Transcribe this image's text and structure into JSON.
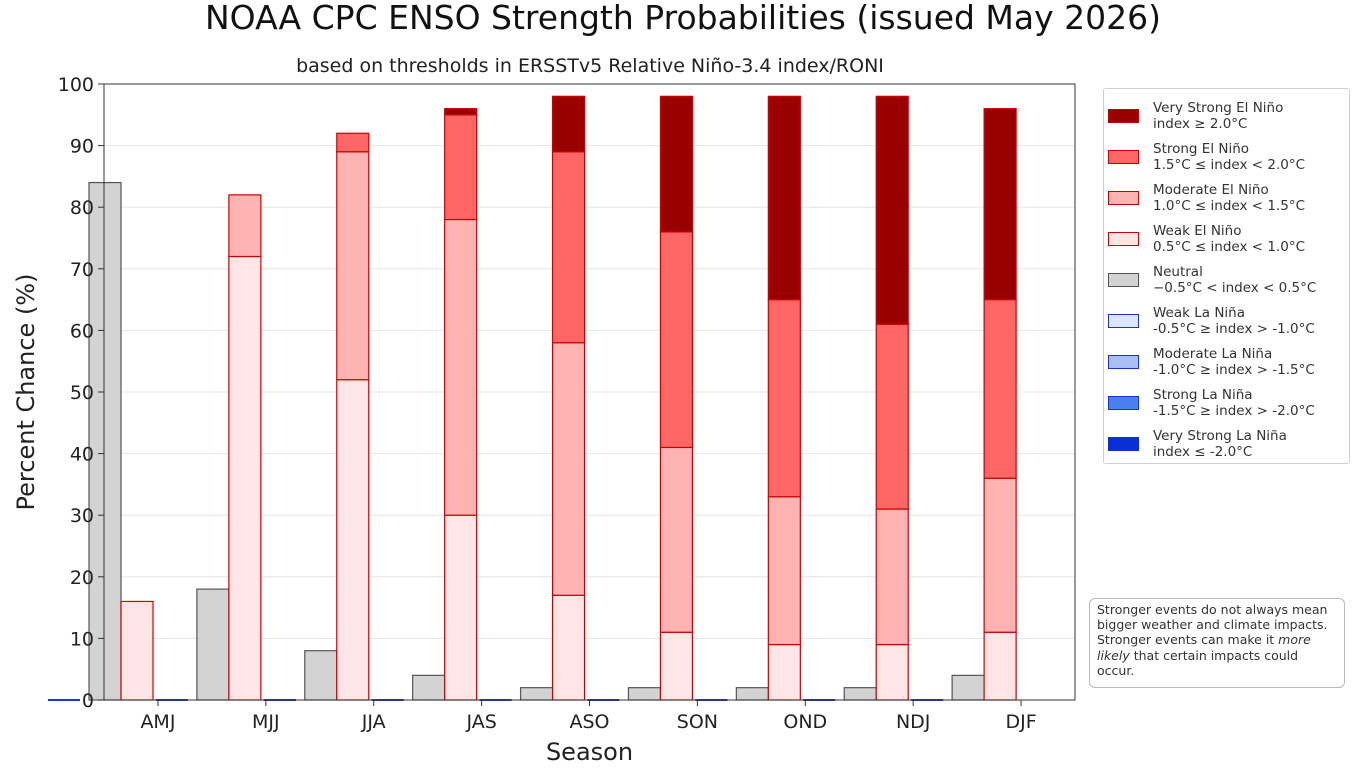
{
  "title": "NOAA CPC ENSO Strength Probabilities (issued May 2026)",
  "subtitle": "based on thresholds in ERSSTv5 Relative Niño-3.4 index/RONI",
  "note": {
    "before": "Stronger events do not always mean bigger weather and climate impacts. Stronger events can make it ",
    "emphasis": "more likely",
    "after": " that certain impacts could occur."
  },
  "legend": [
    {
      "name": "Very Strong El Niño",
      "range": "index ≥ 2.0°C",
      "fill": "#990000",
      "edge": "#cc0000"
    },
    {
      "name": "Strong El Niño",
      "range": "1.5°C ≤ index < 2.0°C",
      "fill": "#ff6666",
      "edge": "#cc0000"
    },
    {
      "name": "Moderate El Niño",
      "range": "1.0°C ≤ index < 1.5°C",
      "fill": "#ffb3b3",
      "edge": "#cc0000"
    },
    {
      "name": "Weak El Niño",
      "range": "0.5°C ≤ index < 1.0°C",
      "fill": "#ffe5e5",
      "edge": "#cc0000"
    },
    {
      "name": "Neutral",
      "range": "−0.5°C < index < 0.5°C",
      "fill": "#d3d3d3",
      "edge": "#555555"
    },
    {
      "name": "Weak La Niña",
      "range": "-0.5°C ≥ index > -1.0°C",
      "fill": "#dde6ff",
      "edge": "#1a33cc"
    },
    {
      "name": "Moderate La Niña",
      "range": "-1.0°C ≥ index > -1.5°C",
      "fill": "#a9c0f5",
      "edge": "#1a33cc"
    },
    {
      "name": "Strong La Niña",
      "range": "-1.5°C ≥ index > -2.0°C",
      "fill": "#4a7ff0",
      "edge": "#1a33cc"
    },
    {
      "name": "Very Strong La Niña",
      "range": "index ≤ -2.0°C",
      "fill": "#0b2fd6",
      "edge": "#0b2fd6"
    }
  ],
  "chart_data": {
    "type": "bar",
    "stacked": true,
    "xlabel": "Season",
    "ylabel": "Percent Chance (%)",
    "ylim": [
      0,
      100
    ],
    "yticks": [
      0,
      10,
      20,
      30,
      40,
      50,
      60,
      70,
      80,
      90,
      100
    ],
    "grid": true,
    "legend_position": "right",
    "categories": [
      "AMJ",
      "MJJ",
      "JJA",
      "JAS",
      "ASO",
      "SON",
      "OND",
      "NDJ",
      "DJF"
    ],
    "groups": [
      {
        "name": "La Niña",
        "stack_order": [
          "Weak La Niña",
          "Moderate La Niña",
          "Strong La Niña",
          "Very Strong La Niña"
        ]
      },
      {
        "name": "Neutral",
        "stack_order": [
          "Neutral"
        ]
      },
      {
        "name": "El Niño",
        "stack_order": [
          "Weak El Niño",
          "Moderate El Niño",
          "Strong El Niño",
          "Very Strong El Niño"
        ]
      }
    ],
    "series": [
      {
        "name": "Very Strong La Niña",
        "group": "La Niña",
        "values": [
          0,
          0,
          0,
          0,
          0,
          0,
          0,
          0,
          0
        ]
      },
      {
        "name": "Strong La Niña",
        "group": "La Niña",
        "values": [
          0,
          0,
          0,
          0,
          0,
          0,
          0,
          0,
          0
        ]
      },
      {
        "name": "Moderate La Niña",
        "group": "La Niña",
        "values": [
          0,
          0,
          0,
          0,
          0,
          0,
          0,
          0,
          0
        ]
      },
      {
        "name": "Weak La Niña",
        "group": "La Niña",
        "values": [
          0,
          0,
          0,
          0,
          0,
          0,
          0,
          0,
          0
        ]
      },
      {
        "name": "Neutral",
        "group": "Neutral",
        "values": [
          84,
          18,
          8,
          4,
          2,
          2,
          2,
          2,
          4
        ]
      },
      {
        "name": "Weak El Niño",
        "group": "El Niño",
        "values": [
          16,
          72,
          52,
          30,
          17,
          11,
          9,
          9,
          11
        ]
      },
      {
        "name": "Moderate El Niño",
        "group": "El Niño",
        "values": [
          0,
          10,
          37,
          48,
          41,
          30,
          24,
          22,
          25
        ]
      },
      {
        "name": "Strong El Niño",
        "group": "El Niño",
        "values": [
          0,
          0,
          3,
          17,
          31,
          35,
          32,
          30,
          29
        ]
      },
      {
        "name": "Very Strong El Niño",
        "group": "El Niño",
        "values": [
          0,
          0,
          0,
          1,
          9,
          22,
          33,
          37,
          31
        ]
      }
    ]
  }
}
